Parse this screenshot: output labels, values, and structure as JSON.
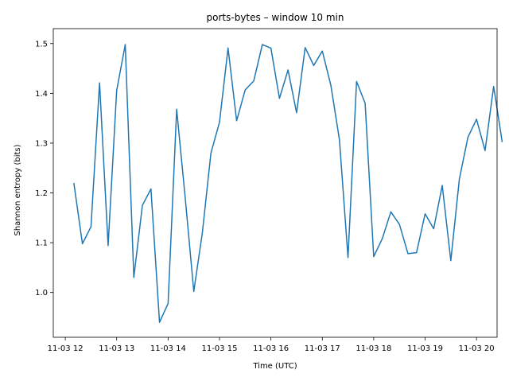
{
  "chart_data": {
    "type": "line",
    "title": "ports-bytes  –  window 10 min",
    "xlabel": "Time (UTC)",
    "ylabel": "Shannon entropy (bits)",
    "xlim": [
      "2024-11-03 11:46",
      "2024-11-03 20:24"
    ],
    "ylim": [
      0.91,
      1.53
    ],
    "grid": false,
    "x_ticks": [
      {
        "value": "2024-11-03 12:00",
        "label": "11-03 12"
      },
      {
        "value": "2024-11-03 13:00",
        "label": "11-03 13"
      },
      {
        "value": "2024-11-03 14:00",
        "label": "11-03 14"
      },
      {
        "value": "2024-11-03 15:00",
        "label": "11-03 15"
      },
      {
        "value": "2024-11-03 16:00",
        "label": "11-03 16"
      },
      {
        "value": "2024-11-03 17:00",
        "label": "11-03 17"
      },
      {
        "value": "2024-11-03 18:00",
        "label": "11-03 18"
      },
      {
        "value": "2024-11-03 19:00",
        "label": "11-03 19"
      },
      {
        "value": "2024-11-03 20:00",
        "label": "11-03 20"
      }
    ],
    "y_ticks": [
      {
        "value": 1.0,
        "label": "1.0"
      },
      {
        "value": 1.1,
        "label": "1.1"
      },
      {
        "value": 1.2,
        "label": "1.2"
      },
      {
        "value": 1.3,
        "label": "1.3"
      },
      {
        "value": 1.4,
        "label": "1.4"
      },
      {
        "value": 1.5,
        "label": "1.5"
      }
    ],
    "series": [
      {
        "color": "#1f77b4",
        "x": [
          "2024-11-03 12:10",
          "2024-11-03 12:20",
          "2024-11-03 12:30",
          "2024-11-03 12:40",
          "2024-11-03 12:50",
          "2024-11-03 13:00",
          "2024-11-03 13:10",
          "2024-11-03 13:20",
          "2024-11-03 13:30",
          "2024-11-03 13:40",
          "2024-11-03 13:50",
          "2024-11-03 14:00",
          "2024-11-03 14:10",
          "2024-11-03 14:20",
          "2024-11-03 14:30",
          "2024-11-03 14:40",
          "2024-11-03 14:50",
          "2024-11-03 15:00",
          "2024-11-03 15:10",
          "2024-11-03 15:20",
          "2024-11-03 15:30",
          "2024-11-03 15:40",
          "2024-11-03 15:50",
          "2024-11-03 16:00",
          "2024-11-03 16:10",
          "2024-11-03 16:20",
          "2024-11-03 16:30",
          "2024-11-03 16:40",
          "2024-11-03 16:50",
          "2024-11-03 17:00",
          "2024-11-03 17:10",
          "2024-11-03 17:20",
          "2024-11-03 17:30",
          "2024-11-03 17:40",
          "2024-11-03 17:50",
          "2024-11-03 18:00",
          "2024-11-03 18:10",
          "2024-11-03 18:20",
          "2024-11-03 18:30",
          "2024-11-03 18:40",
          "2024-11-03 18:50",
          "2024-11-03 19:00",
          "2024-11-03 19:10",
          "2024-11-03 19:20",
          "2024-11-03 19:30",
          "2024-11-03 19:40",
          "2024-11-03 19:50",
          "2024-11-03 20:00",
          "2024-11-03 20:10",
          "2024-11-03 20:20",
          "2024-11-03 20:30"
        ],
        "values": [
          1.22,
          1.098,
          1.132,
          1.421,
          1.094,
          1.406,
          1.498,
          1.03,
          1.175,
          1.208,
          0.94,
          0.978,
          1.368,
          1.19,
          1.002,
          1.12,
          1.28,
          1.342,
          1.491,
          1.345,
          1.407,
          1.425,
          1.498,
          1.491,
          1.39,
          1.447,
          1.361,
          1.492,
          1.456,
          1.485,
          1.416,
          1.307,
          1.07,
          1.424,
          1.38,
          1.072,
          1.108,
          1.162,
          1.137,
          1.078,
          1.08,
          1.158,
          1.128,
          1.215,
          1.064,
          1.228,
          1.312,
          1.348,
          1.285,
          1.414,
          1.302
        ]
      }
    ]
  }
}
